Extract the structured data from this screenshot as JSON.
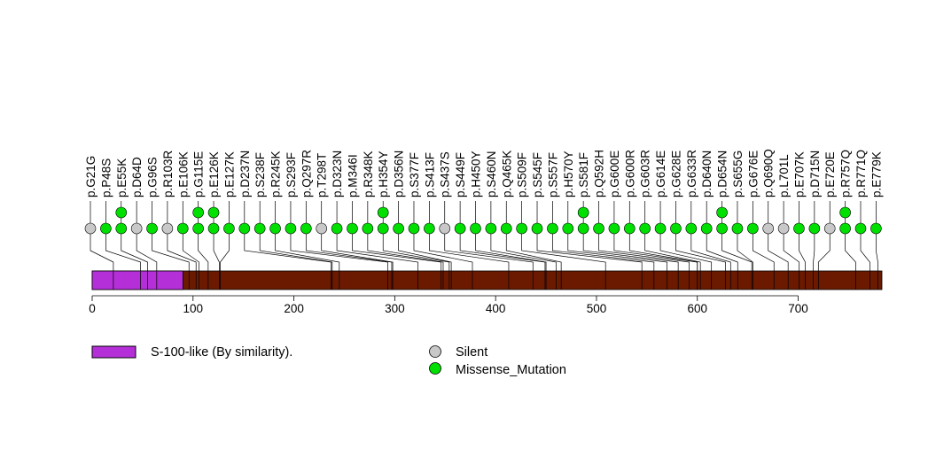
{
  "chart_data": {
    "type": "lollipop",
    "title": "",
    "xlabel": "",
    "ylabel": "",
    "protein_length": 783,
    "xlim": [
      0,
      783
    ],
    "x_ticks": [
      0,
      100,
      200,
      300,
      400,
      500,
      600,
      700
    ],
    "colors": {
      "protein": "#6b1a00",
      "domain": "#b52fd9",
      "silent": "#c8c8c8",
      "missense": "#00e000",
      "stroke": "#000000"
    },
    "domains": [
      {
        "name": "S-100-like (By similarity).",
        "start": 1,
        "end": 90
      }
    ],
    "legend": {
      "domains": [
        {
          "label": "S-100-like (By similarity).",
          "color": "#b52fd9"
        }
      ],
      "mutation_types": [
        {
          "label": "Silent",
          "color": "#c8c8c8"
        },
        {
          "label": "Missense_Mutation",
          "color": "#00e000"
        }
      ]
    },
    "mutations": [
      {
        "label": "p.G21G",
        "pos": 21,
        "type": "Silent",
        "count": 1
      },
      {
        "label": "p.P48S",
        "pos": 48,
        "type": "Missense_Mutation",
        "count": 1
      },
      {
        "label": "p.E55K",
        "pos": 55,
        "type": "Missense_Mutation",
        "count": 2
      },
      {
        "label": "p.D64D",
        "pos": 64,
        "type": "Silent",
        "count": 1
      },
      {
        "label": "p.G96S",
        "pos": 96,
        "type": "Missense_Mutation",
        "count": 1
      },
      {
        "label": "p.R103R",
        "pos": 103,
        "type": "Silent",
        "count": 1
      },
      {
        "label": "p.E106K",
        "pos": 106,
        "type": "Missense_Mutation",
        "count": 1
      },
      {
        "label": "p.G115E",
        "pos": 115,
        "type": "Missense_Mutation",
        "count": 2
      },
      {
        "label": "p.E126K",
        "pos": 126,
        "type": "Missense_Mutation",
        "count": 2
      },
      {
        "label": "p.E127K",
        "pos": 127,
        "type": "Missense_Mutation",
        "count": 1
      },
      {
        "label": "p.D237N",
        "pos": 237,
        "type": "Missense_Mutation",
        "count": 1
      },
      {
        "label": "p.S238F",
        "pos": 238,
        "type": "Missense_Mutation",
        "count": 1
      },
      {
        "label": "p.R245K",
        "pos": 245,
        "type": "Missense_Mutation",
        "count": 1
      },
      {
        "label": "p.S293F",
        "pos": 293,
        "type": "Missense_Mutation",
        "count": 1
      },
      {
        "label": "p.Q297R",
        "pos": 297,
        "type": "Missense_Mutation",
        "count": 1
      },
      {
        "label": "p.T298T",
        "pos": 298,
        "type": "Silent",
        "count": 1
      },
      {
        "label": "p.D323N",
        "pos": 323,
        "type": "Missense_Mutation",
        "count": 1
      },
      {
        "label": "p.M346I",
        "pos": 346,
        "type": "Missense_Mutation",
        "count": 1
      },
      {
        "label": "p.R348K",
        "pos": 348,
        "type": "Missense_Mutation",
        "count": 1
      },
      {
        "label": "p.H354Y",
        "pos": 354,
        "type": "Missense_Mutation",
        "count": 2
      },
      {
        "label": "p.D356N",
        "pos": 356,
        "type": "Missense_Mutation",
        "count": 1
      },
      {
        "label": "p.S377F",
        "pos": 377,
        "type": "Missense_Mutation",
        "count": 1
      },
      {
        "label": "p.S413F",
        "pos": 413,
        "type": "Missense_Mutation",
        "count": 1
      },
      {
        "label": "p.S437S",
        "pos": 437,
        "type": "Silent",
        "count": 1
      },
      {
        "label": "p.S449F",
        "pos": 449,
        "type": "Missense_Mutation",
        "count": 1
      },
      {
        "label": "p.H450Y",
        "pos": 450,
        "type": "Missense_Mutation",
        "count": 1
      },
      {
        "label": "p.S460N",
        "pos": 460,
        "type": "Missense_Mutation",
        "count": 1
      },
      {
        "label": "p.Q465K",
        "pos": 465,
        "type": "Missense_Mutation",
        "count": 1
      },
      {
        "label": "p.S509F",
        "pos": 509,
        "type": "Missense_Mutation",
        "count": 1
      },
      {
        "label": "p.S545F",
        "pos": 545,
        "type": "Missense_Mutation",
        "count": 1
      },
      {
        "label": "p.S557F",
        "pos": 557,
        "type": "Missense_Mutation",
        "count": 1
      },
      {
        "label": "p.H570Y",
        "pos": 570,
        "type": "Missense_Mutation",
        "count": 1
      },
      {
        "label": "p.S581F",
        "pos": 581,
        "type": "Missense_Mutation",
        "count": 2
      },
      {
        "label": "p.Q592H",
        "pos": 592,
        "type": "Missense_Mutation",
        "count": 1
      },
      {
        "label": "p.G600E",
        "pos": 600,
        "type": "Missense_Mutation",
        "count": 1
      },
      {
        "label": "p.G600R",
        "pos": 600,
        "type": "Missense_Mutation",
        "count": 1
      },
      {
        "label": "p.G603R",
        "pos": 603,
        "type": "Missense_Mutation",
        "count": 1
      },
      {
        "label": "p.G614E",
        "pos": 614,
        "type": "Missense_Mutation",
        "count": 1
      },
      {
        "label": "p.G628E",
        "pos": 628,
        "type": "Missense_Mutation",
        "count": 1
      },
      {
        "label": "p.G633R",
        "pos": 633,
        "type": "Missense_Mutation",
        "count": 1
      },
      {
        "label": "p.D640N",
        "pos": 640,
        "type": "Missense_Mutation",
        "count": 1
      },
      {
        "label": "p.D654N",
        "pos": 654,
        "type": "Missense_Mutation",
        "count": 2
      },
      {
        "label": "p.S655G",
        "pos": 655,
        "type": "Missense_Mutation",
        "count": 1
      },
      {
        "label": "p.G676E",
        "pos": 676,
        "type": "Missense_Mutation",
        "count": 1
      },
      {
        "label": "p.Q690Q",
        "pos": 690,
        "type": "Silent",
        "count": 1
      },
      {
        "label": "p.L701L",
        "pos": 701,
        "type": "Silent",
        "count": 1
      },
      {
        "label": "p.E707K",
        "pos": 707,
        "type": "Missense_Mutation",
        "count": 1
      },
      {
        "label": "p.D715N",
        "pos": 715,
        "type": "Missense_Mutation",
        "count": 1
      },
      {
        "label": "p.E720E",
        "pos": 720,
        "type": "Silent",
        "count": 1
      },
      {
        "label": "p.R757Q",
        "pos": 757,
        "type": "Missense_Mutation",
        "count": 2
      },
      {
        "label": "p.R771Q",
        "pos": 771,
        "type": "Missense_Mutation",
        "count": 1
      },
      {
        "label": "p.E779K",
        "pos": 779,
        "type": "Missense_Mutation",
        "count": 1
      }
    ]
  }
}
